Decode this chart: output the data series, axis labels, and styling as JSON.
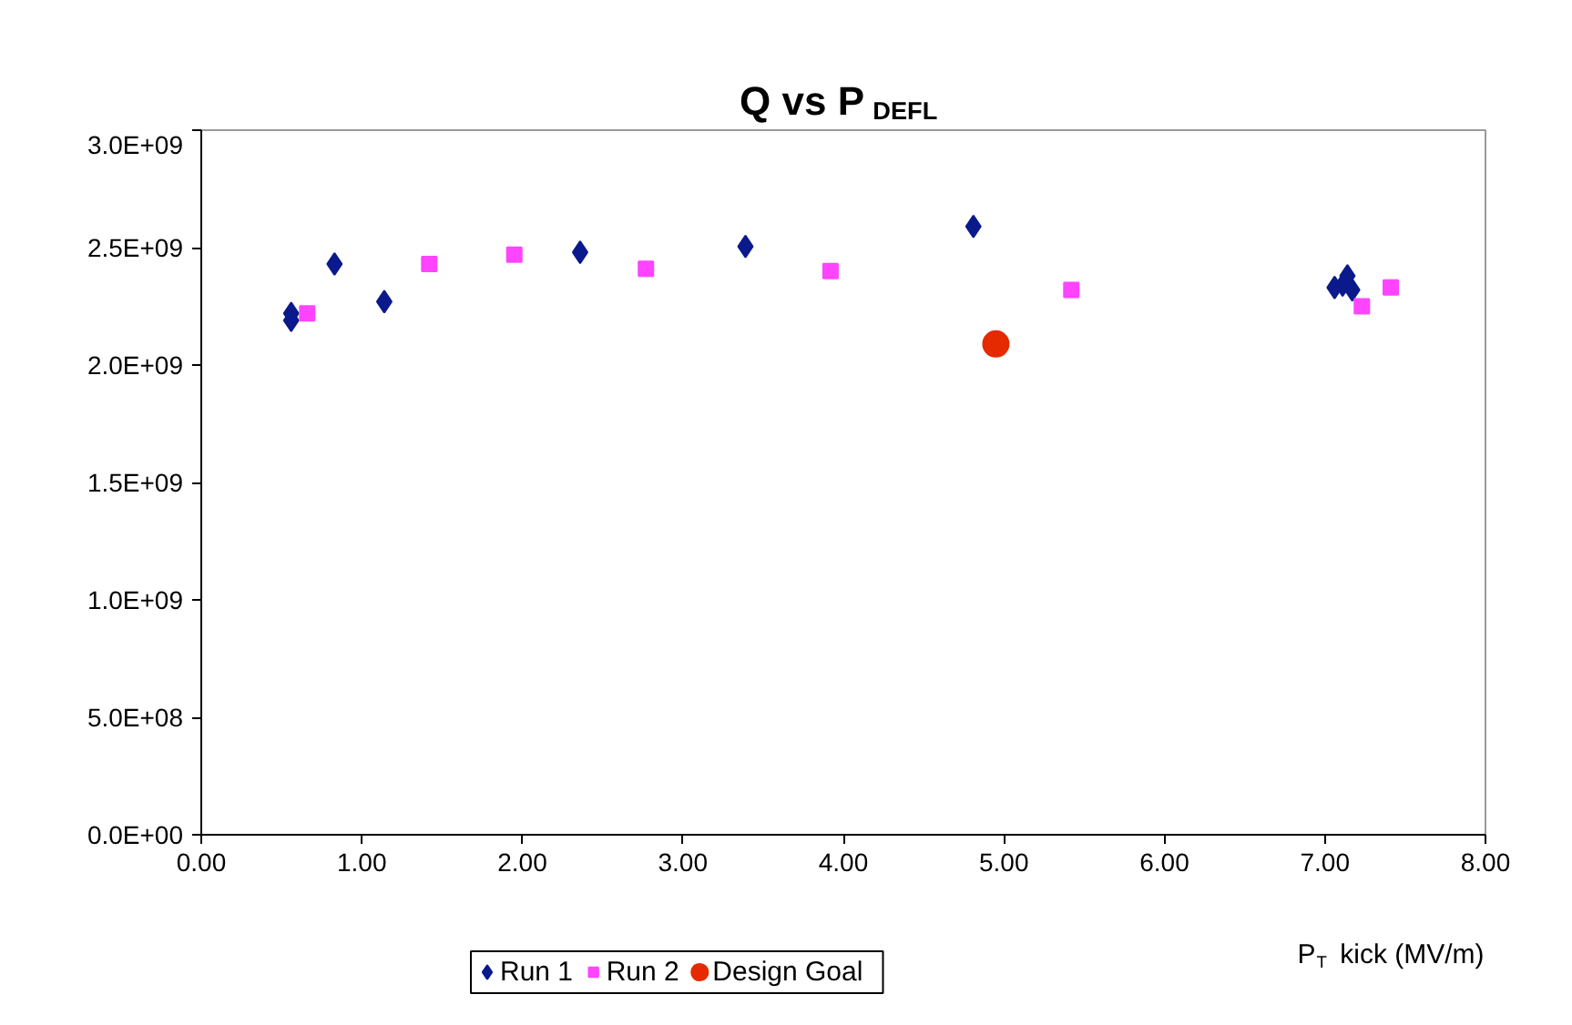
{
  "chart_data": {
    "type": "scatter",
    "title": "Q vs P$_{DEFL}$",
    "xlabel": "P$_{T}$ kick (MV/m)",
    "xlim": [
      0,
      8
    ],
    "xticks": [
      {
        "value": 0,
        "label": "0.00"
      },
      {
        "value": 1,
        "label": "1.00"
      },
      {
        "value": 2,
        "label": "2.00"
      },
      {
        "value": 3,
        "label": "3.00"
      },
      {
        "value": 4,
        "label": "4.00"
      },
      {
        "value": 5,
        "label": "5.00"
      },
      {
        "value": 6,
        "label": "6.00"
      },
      {
        "value": 7,
        "label": "7.00"
      },
      {
        "value": 8,
        "label": "8.00"
      }
    ],
    "ylim": [
      0,
      3000000000
    ],
    "yticks": [
      {
        "value": 0,
        "label": "0.0E+00"
      },
      {
        "value": 500000000,
        "label": "5.0E+08"
      },
      {
        "value": 1000000000,
        "label": "1.0E+09"
      },
      {
        "value": 1500000000,
        "label": "1.5E+09"
      },
      {
        "value": 2000000000,
        "label": "2.0E+09"
      },
      {
        "value": 2500000000,
        "label": "2.5E+09"
      },
      {
        "value": 3000000000,
        "label": "3.0E+09"
      }
    ],
    "grid": false,
    "legend": "bottom",
    "series": [
      {
        "name": "Run 1",
        "color": "#0a1a8c",
        "marker": "diamond",
        "x": [
          0.56,
          0.56,
          0.83,
          1.14,
          2.36,
          3.39,
          4.81,
          7.06,
          7.11,
          7.14,
          7.17
        ],
        "values": [
          2220000000,
          2190000000,
          2430000000,
          2270000000,
          2480000000,
          2505000000,
          2590000000,
          2330000000,
          2340000000,
          2380000000,
          2320000000
        ]
      },
      {
        "name": "Run 2",
        "color": "#ff44ff",
        "marker": "square",
        "x": [
          0.66,
          1.42,
          1.95,
          2.77,
          3.92,
          5.42,
          7.23,
          7.41
        ],
        "values": [
          2220000000,
          2430000000,
          2470000000,
          2410000000,
          2400000000,
          2320000000,
          2250000000,
          2330000000
        ]
      },
      {
        "name": "Design Goal",
        "color": "#e62a00",
        "marker": "circle",
        "x": [
          4.95
        ],
        "values": [
          2090000000
        ]
      }
    ]
  }
}
